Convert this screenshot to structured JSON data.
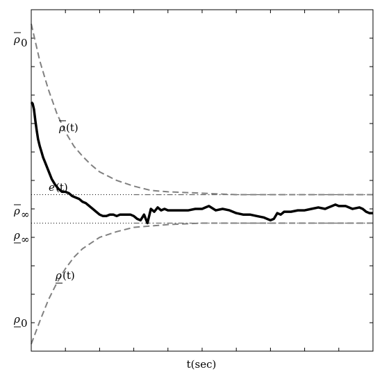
{
  "chart_data": {
    "type": "line",
    "xlabel": "t(sec)",
    "ylabel": "",
    "title": "",
    "xlim": [
      0,
      10
    ],
    "ylim": [
      -1,
      1.4
    ],
    "x_tick_count": 9,
    "y_tick_count": 11,
    "grid": false,
    "legend": "none",
    "y_tick_labels": {
      "rho_bar_0": {
        "base": "ρ",
        "over": true,
        "sub": "0",
        "value": 1.3
      },
      "rho_bar_inf": {
        "base": "ρ",
        "over": true,
        "sub": "∞",
        "value": 0.1
      },
      "rho_under_inf": {
        "base": "ρ",
        "under": true,
        "sub": "∞",
        "value": -0.1
      },
      "rho_under_0": {
        "base": "ρ",
        "under": true,
        "sub": "0",
        "value": -0.95
      }
    },
    "annotations": {
      "rho_bar_t": {
        "text": "ρ",
        "over": true,
        "arg": "(t)",
        "x": 0.8,
        "y": 0.85
      },
      "e_t": {
        "text": "e",
        "arg": "(t)",
        "x": 0.55,
        "y": 0.27
      },
      "rho_under_t": {
        "text": "ρ",
        "under": true,
        "arg": "(t)",
        "x": 0.7,
        "y": -0.4
      }
    },
    "series": [
      {
        "style": "solid",
        "color": "#000000",
        "x": [
          0,
          0.04,
          0.08,
          0.12,
          0.16,
          0.2,
          0.25,
          0.3,
          0.35,
          0.4,
          0.5,
          0.6,
          0.7,
          0.8,
          0.9,
          1.0,
          1.1,
          1.2,
          1.3,
          1.4,
          1.5,
          1.6,
          1.7,
          1.8,
          1.9,
          2.0,
          2.1,
          2.2,
          2.3,
          2.4,
          2.5,
          2.6,
          2.7,
          2.8,
          2.9,
          3.0,
          3.1,
          3.2,
          3.3,
          3.4,
          3.5,
          3.6,
          3.7,
          3.8,
          3.9,
          4.0,
          4.2,
          4.4,
          4.6,
          4.8,
          5.0,
          5.1,
          5.2,
          5.4,
          5.6,
          5.8,
          6.0,
          6.2,
          6.4,
          6.6,
          6.8,
          7.0,
          7.1,
          7.2,
          7.3,
          7.4,
          7.6,
          7.8,
          8.0,
          8.2,
          8.4,
          8.6,
          8.7,
          8.8,
          8.9,
          9.0,
          9.2,
          9.4,
          9.6,
          9.7,
          9.8,
          9.9,
          10.0
        ],
        "y": [
          0.75,
          0.74,
          0.7,
          0.62,
          0.55,
          0.49,
          0.44,
          0.4,
          0.36,
          0.33,
          0.27,
          0.21,
          0.17,
          0.14,
          0.12,
          0.12,
          0.11,
          0.09,
          0.08,
          0.07,
          0.05,
          0.04,
          0.02,
          0.0,
          -0.02,
          -0.04,
          -0.05,
          -0.05,
          -0.04,
          -0.04,
          -0.05,
          -0.04,
          -0.04,
          -0.04,
          -0.04,
          -0.05,
          -0.07,
          -0.08,
          -0.04,
          -0.1,
          0.0,
          -0.02,
          0.01,
          -0.01,
          0.0,
          -0.01,
          -0.01,
          -0.01,
          -0.01,
          0.0,
          0.0,
          0.01,
          0.02,
          -0.01,
          0.0,
          -0.01,
          -0.03,
          -0.04,
          -0.04,
          -0.05,
          -0.06,
          -0.08,
          -0.07,
          -0.03,
          -0.04,
          -0.02,
          -0.02,
          -0.01,
          -0.01,
          0.0,
          0.01,
          0.0,
          0.01,
          0.02,
          0.03,
          0.02,
          0.02,
          0.0,
          0.01,
          0.0,
          -0.02,
          -0.03,
          -0.03
        ]
      },
      {
        "style": "dashed",
        "color": "#808080",
        "x": [
          0,
          0.25,
          0.5,
          0.75,
          1.0,
          1.25,
          1.5,
          1.75,
          2.0,
          2.5,
          3.0,
          3.5,
          4.0,
          5.0,
          6.0,
          7.0,
          8.0,
          9.0,
          10.0
        ],
        "y": [
          1.3,
          1.04,
          0.84,
          0.67,
          0.54,
          0.44,
          0.37,
          0.31,
          0.26,
          0.2,
          0.16,
          0.13,
          0.12,
          0.11,
          0.1,
          0.1,
          0.1,
          0.1,
          0.1
        ]
      },
      {
        "style": "dashed",
        "color": "#808080",
        "x": [
          0,
          0.25,
          0.5,
          0.75,
          1.0,
          1.25,
          1.5,
          1.75,
          2.0,
          2.5,
          3.0,
          3.5,
          4.0,
          5.0,
          6.0,
          7.0,
          8.0,
          9.0,
          10.0
        ],
        "y": [
          -0.95,
          -0.79,
          -0.64,
          -0.52,
          -0.42,
          -0.34,
          -0.28,
          -0.24,
          -0.2,
          -0.16,
          -0.13,
          -0.12,
          -0.11,
          -0.1,
          -0.1,
          -0.1,
          -0.1,
          -0.1,
          -0.1
        ]
      }
    ],
    "reference_lines": [
      {
        "y": 0.1,
        "style": "dotted"
      },
      {
        "y": -0.1,
        "style": "dotted"
      }
    ]
  }
}
